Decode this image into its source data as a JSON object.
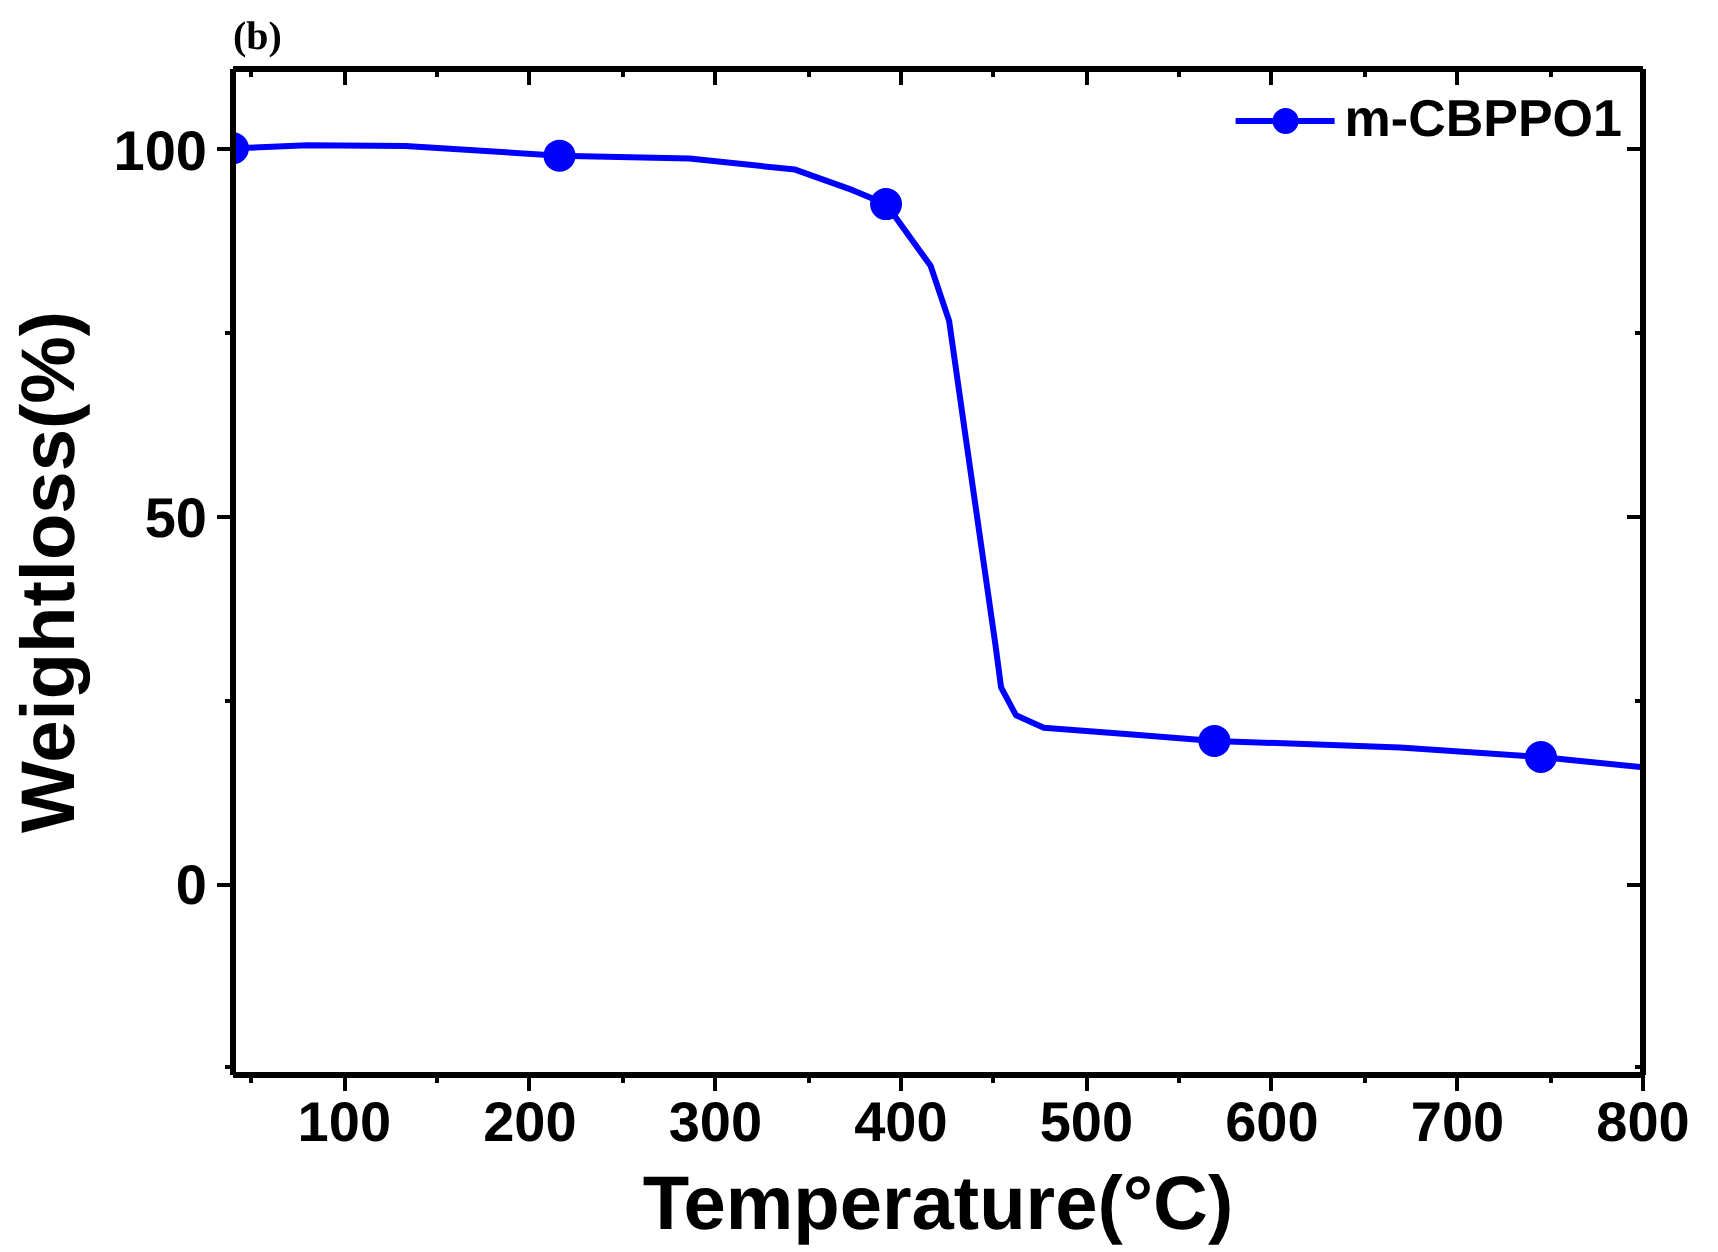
{
  "chart_data": {
    "type": "line",
    "title": "(b)",
    "xlabel": "Temperature(°C)",
    "ylabel": "Weightloss(%)",
    "xlim": [
      40,
      800
    ],
    "ylim": [
      -26,
      111
    ],
    "xticks": [
      {
        "value": 50,
        "label": null
      },
      100,
      {
        "value": 150,
        "label": null
      },
      200,
      {
        "value": 250,
        "label": null
      },
      300,
      {
        "value": 350,
        "label": null
      },
      400,
      {
        "value": 450,
        "label": null
      },
      500,
      {
        "value": 550,
        "label": null
      },
      600,
      {
        "value": 650,
        "label": null
      },
      700,
      {
        "value": 750,
        "label": null
      },
      800
    ],
    "yticks": [
      {
        "value": -25,
        "label": null
      },
      0,
      {
        "value": 25,
        "label": null
      },
      50,
      {
        "value": 75,
        "label": null
      },
      100
    ],
    "grid": false,
    "legend": "top right",
    "line_style": "solid",
    "series": [
      {
        "name": "m-CBPPO1",
        "color": "#0000ff",
        "x": [
          40,
          80,
          133,
          216,
          286,
          343,
          374,
          392,
          416,
          426,
          435,
          443,
          451,
          454,
          462,
          477,
          523,
          569,
          669,
          745,
          800
        ],
        "values": [
          100.2,
          100.6,
          100.5,
          99.2,
          98.8,
          97.3,
          94.5,
          92.6,
          84.2,
          76.7,
          60.7,
          46.6,
          32.5,
          26.8,
          23,
          21.3,
          20.4,
          19.5,
          18.6,
          17.3,
          15.9
        ]
      },
      {
        "color": "#0000ff",
        "type": "scatter",
        "marker": "circle",
        "x": [
          40,
          216,
          392,
          569,
          745
        ],
        "values": [
          100.2,
          99.2,
          92.6,
          19.5,
          17.3
        ]
      }
    ]
  }
}
